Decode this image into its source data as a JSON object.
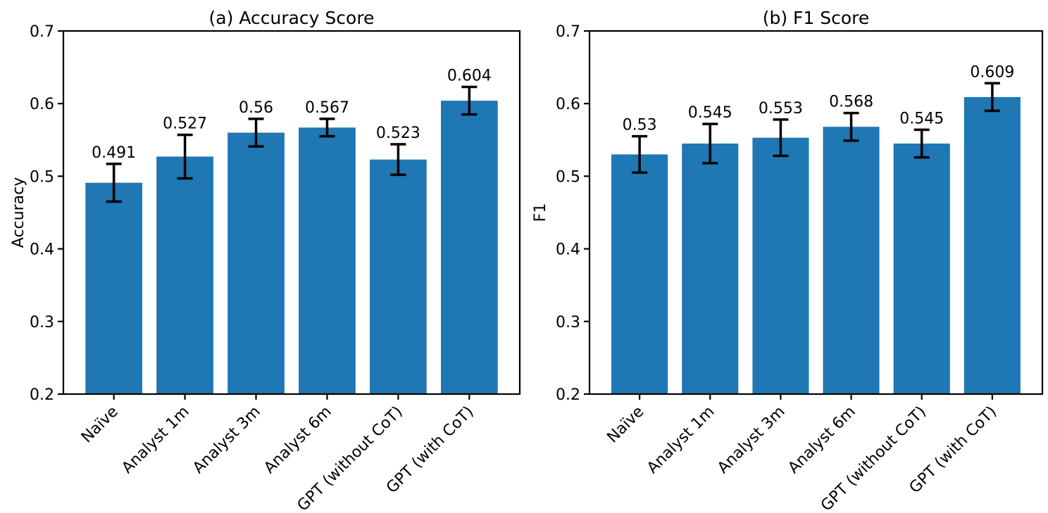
{
  "figure": {
    "background": "#ffffff",
    "bar_color": "#1f77b4",
    "axis_color": "#000000",
    "text_color": "#000000"
  },
  "chart_data": [
    {
      "type": "bar",
      "title": "(a) Accuracy Score",
      "xlabel": "",
      "ylabel": "Accuracy",
      "categories": [
        "Naïve",
        "Analyst 1m",
        "Analyst 3m",
        "Analyst 6m",
        "GPT (without CoT)",
        "GPT (with CoT)"
      ],
      "values": [
        0.491,
        0.527,
        0.56,
        0.567,
        0.523,
        0.604
      ],
      "value_labels": [
        "0.491",
        "0.527",
        "0.56",
        "0.567",
        "0.523",
        "0.604"
      ],
      "errors": [
        0.026,
        0.03,
        0.019,
        0.012,
        0.021,
        0.019
      ],
      "ylim": [
        0.2,
        0.7
      ],
      "yticks": [
        0.2,
        0.3,
        0.4,
        0.5,
        0.6,
        0.7
      ],
      "ytick_labels": [
        "0.2",
        "0.3",
        "0.4",
        "0.5",
        "0.6",
        "0.7"
      ],
      "bar_width_fraction": 0.8,
      "grid": false,
      "legend": "none",
      "error_bars": true,
      "xtick_rotation_deg": 45
    },
    {
      "type": "bar",
      "title": "(b) F1 Score",
      "xlabel": "",
      "ylabel": "F1",
      "categories": [
        "Naïve",
        "Analyst 1m",
        "Analyst 3m",
        "Analyst 6m",
        "GPT (without CoT)",
        "GPT (with CoT)"
      ],
      "values": [
        0.53,
        0.545,
        0.553,
        0.568,
        0.545,
        0.609
      ],
      "value_labels": [
        "0.53",
        "0.545",
        "0.553",
        "0.568",
        "0.545",
        "0.609"
      ],
      "errors": [
        0.025,
        0.027,
        0.025,
        0.019,
        0.019,
        0.019
      ],
      "ylim": [
        0.2,
        0.7
      ],
      "yticks": [
        0.2,
        0.3,
        0.4,
        0.5,
        0.6,
        0.7
      ],
      "ytick_labels": [
        "0.2",
        "0.3",
        "0.4",
        "0.5",
        "0.6",
        "0.7"
      ],
      "bar_width_fraction": 0.8,
      "grid": false,
      "legend": "none",
      "error_bars": true,
      "xtick_rotation_deg": 45
    }
  ]
}
